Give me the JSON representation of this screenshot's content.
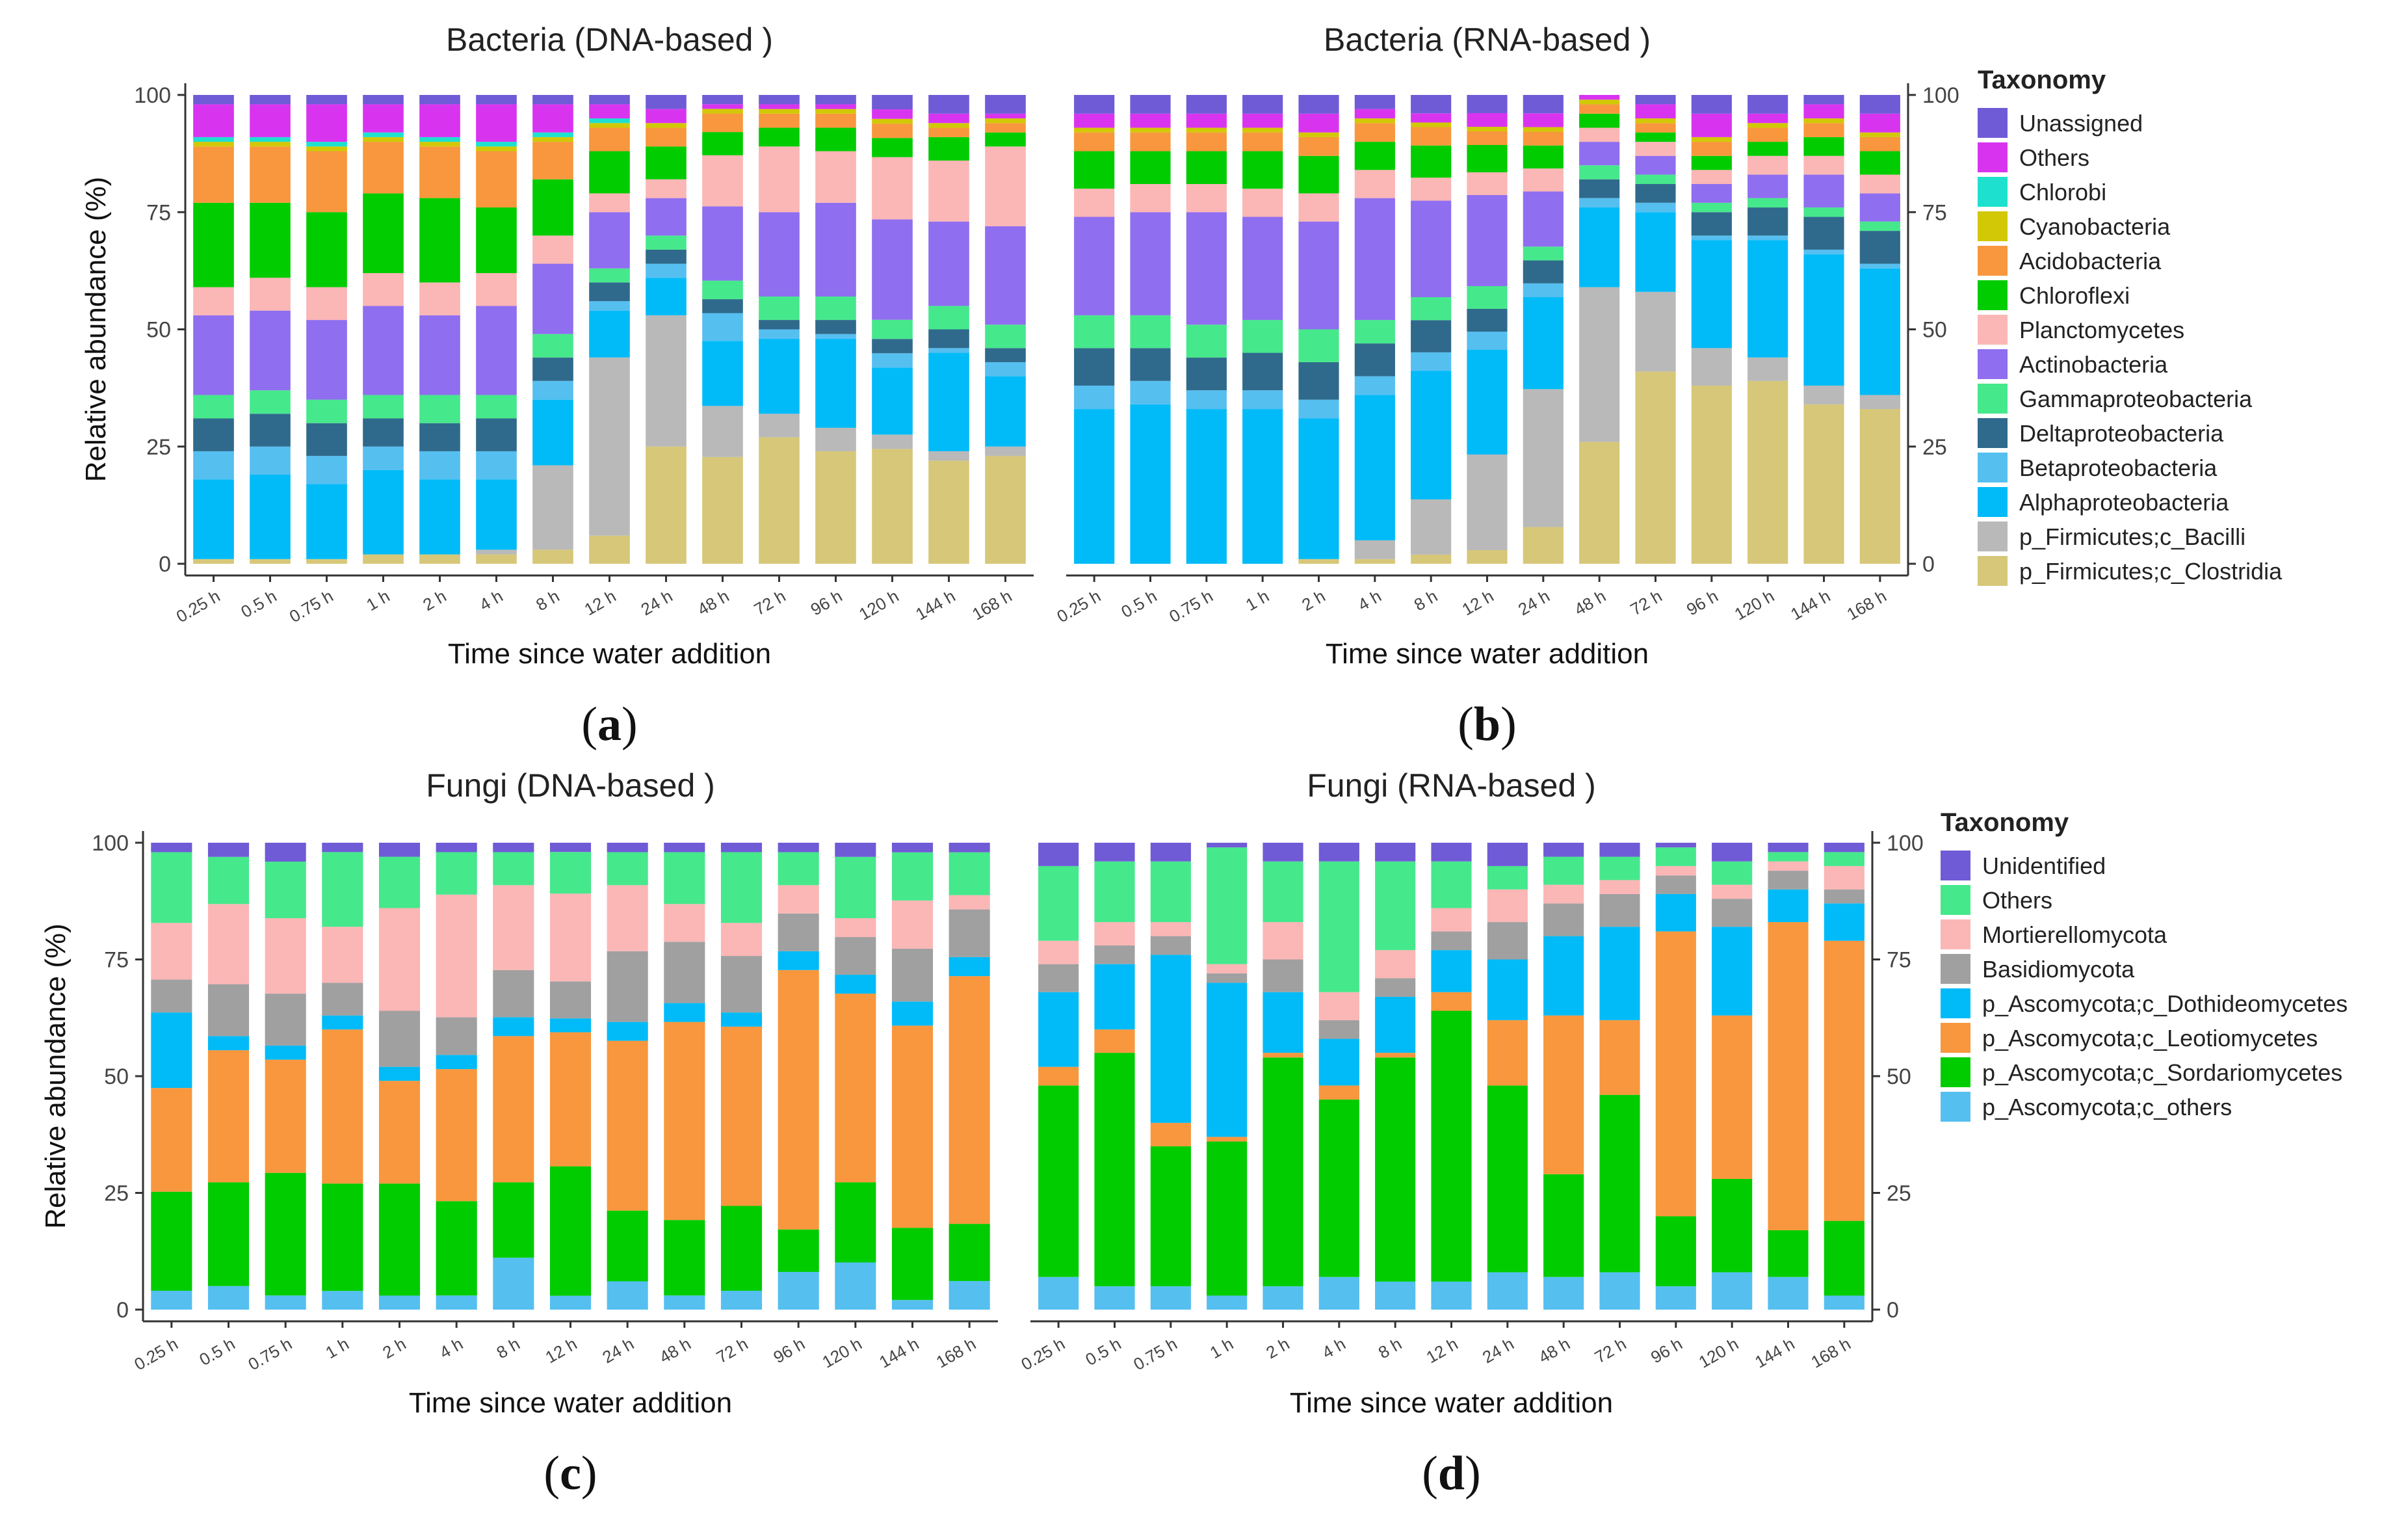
{
  "chart_data": [
    {
      "type": "bar",
      "id": "a",
      "stacked": true,
      "title": "Bacteria (DNA-based )",
      "panel_label": "a",
      "xlabel": "Time since water addition",
      "ylabel": "Relative abundance (%)",
      "ylim": [
        0,
        100
      ],
      "yticks": [
        "0",
        "25",
        "50",
        "75",
        "100"
      ],
      "categories": [
        "0.25 h",
        "0.5 h",
        "0.75 h",
        "1 h",
        "2 h",
        "4 h",
        "8 h",
        "12 h",
        "24 h",
        "48 h",
        "72 h",
        "96 h",
        "120 h",
        "144 h",
        "168 h"
      ],
      "legend_group": "bacteria",
      "series": [
        {
          "name": "p_Firmicutes;c_Clostridia",
          "values": [
            1,
            1,
            1,
            2,
            2,
            2,
            3,
            6,
            25,
            23,
            27,
            24,
            24,
            22,
            23
          ]
        },
        {
          "name": "p_Firmicutes;c_Bacilli",
          "values": [
            0,
            0,
            0,
            0,
            0,
            1,
            18,
            38,
            28,
            11,
            5,
            5,
            3,
            2,
            2
          ]
        },
        {
          "name": "Alphaproteobacteria",
          "values": [
            17,
            18,
            16,
            18,
            16,
            15,
            14,
            10,
            8,
            14,
            16,
            19,
            14,
            21,
            15
          ]
        },
        {
          "name": "Betaproteobacteria",
          "values": [
            6,
            6,
            6,
            5,
            6,
            6,
            4,
            2,
            3,
            6,
            2,
            1,
            3,
            1,
            3
          ]
        },
        {
          "name": "Deltaproteobacteria",
          "values": [
            7,
            7,
            7,
            6,
            6,
            7,
            5,
            4,
            3,
            3,
            2,
            3,
            3,
            4,
            3
          ]
        },
        {
          "name": "Gammaproteobacteria",
          "values": [
            5,
            5,
            5,
            5,
            6,
            5,
            5,
            3,
            3,
            4,
            5,
            5,
            4,
            5,
            5
          ]
        },
        {
          "name": "Actinobacteria",
          "values": [
            17,
            17,
            17,
            19,
            17,
            19,
            15,
            12,
            8,
            16,
            18,
            20,
            21,
            18,
            21
          ]
        },
        {
          "name": "Planctomycetes",
          "values": [
            6,
            7,
            7,
            7,
            7,
            7,
            6,
            4,
            4,
            11,
            14,
            11,
            13,
            13,
            17
          ]
        },
        {
          "name": "Chloroflexi",
          "values": [
            18,
            16,
            16,
            17,
            18,
            14,
            12,
            9,
            7,
            5,
            4,
            5,
            4,
            5,
            3
          ]
        },
        {
          "name": "Acidobacteria",
          "values": [
            12,
            12,
            13,
            11,
            11,
            12,
            8,
            5,
            4,
            4,
            3,
            3,
            3,
            2,
            2
          ]
        },
        {
          "name": "Cyanobacteria",
          "values": [
            1,
            1,
            1,
            1,
            1,
            1,
            1,
            1,
            1,
            1,
            1,
            1,
            1,
            1,
            1
          ]
        },
        {
          "name": "Chlorobi",
          "values": [
            1,
            1,
            1,
            1,
            1,
            1,
            1,
            1,
            0,
            0,
            0,
            0,
            0,
            0,
            0
          ]
        },
        {
          "name": "Others",
          "values": [
            7,
            7,
            8,
            6,
            7,
            8,
            6,
            3,
            3,
            1,
            1,
            1,
            2,
            2,
            1
          ]
        },
        {
          "name": "Unassigned",
          "values": [
            2,
            2,
            2,
            2,
            2,
            2,
            2,
            2,
            3,
            2,
            2,
            2,
            3,
            4,
            4
          ]
        }
      ]
    },
    {
      "type": "bar",
      "id": "b",
      "stacked": true,
      "title": "Bacteria  (RNA-based )",
      "panel_label": "b",
      "xlabel": "Time since water addition",
      "ylabel": "",
      "ylim": [
        0,
        100
      ],
      "yticks": [
        "0",
        "25",
        "50",
        "75",
        "100"
      ],
      "categories": [
        "0.25 h",
        "0.5 h",
        "0.75 h",
        "1 h",
        "2 h",
        "4 h",
        "8 h",
        "12 h",
        "24 h",
        "48 h",
        "72 h",
        "96 h",
        "120 h",
        "144 h",
        "168 h"
      ],
      "legend_group": "bacteria",
      "series": [
        {
          "name": "p_Firmicutes;c_Clostridia",
          "values": [
            0,
            0,
            0,
            0,
            1,
            1,
            2,
            3,
            8,
            26,
            41,
            38,
            39,
            34,
            33
          ]
        },
        {
          "name": "p_Firmicutes;c_Bacilli",
          "values": [
            0,
            0,
            0,
            0,
            0,
            4,
            12,
            21,
            30,
            33,
            17,
            8,
            5,
            4,
            3
          ]
        },
        {
          "name": "Alphaproteobacteria",
          "values": [
            33,
            34,
            33,
            33,
            30,
            31,
            28,
            23,
            20,
            17,
            17,
            23,
            25,
            28,
            27
          ]
        },
        {
          "name": "Betaproteobacteria",
          "values": [
            5,
            5,
            4,
            4,
            4,
            4,
            4,
            4,
            3,
            2,
            2,
            1,
            1,
            1,
            1
          ]
        },
        {
          "name": "Deltaproteobacteria",
          "values": [
            8,
            7,
            7,
            8,
            8,
            7,
            7,
            5,
            5,
            4,
            4,
            5,
            6,
            7,
            7
          ]
        },
        {
          "name": "Gammaproteobacteria",
          "values": [
            7,
            7,
            7,
            7,
            7,
            5,
            5,
            5,
            3,
            3,
            2,
            2,
            2,
            2,
            2
          ]
        },
        {
          "name": "Actinobacteria",
          "values": [
            21,
            22,
            24,
            22,
            23,
            26,
            21,
            20,
            12,
            5,
            4,
            4,
            5,
            7,
            6
          ]
        },
        {
          "name": "Planctomycetes",
          "values": [
            6,
            6,
            6,
            6,
            6,
            6,
            5,
            5,
            5,
            3,
            3,
            3,
            4,
            4,
            4
          ]
        },
        {
          "name": "Chloroflexi",
          "values": [
            8,
            7,
            7,
            8,
            8,
            6,
            7,
            6,
            5,
            3,
            2,
            3,
            3,
            4,
            5
          ]
        },
        {
          "name": "Acidobacteria",
          "values": [
            4,
            4,
            4,
            4,
            4,
            4,
            4,
            3,
            3,
            2,
            2,
            3,
            3,
            3,
            3
          ]
        },
        {
          "name": "Cyanobacteria",
          "values": [
            1,
            1,
            1,
            1,
            1,
            1,
            1,
            1,
            1,
            1,
            1,
            1,
            1,
            1,
            1
          ]
        },
        {
          "name": "Chlorobi",
          "values": [
            0,
            0,
            0,
            0,
            0,
            0,
            0,
            0,
            0,
            0,
            0,
            0,
            0,
            0,
            0
          ]
        },
        {
          "name": "Others",
          "values": [
            3,
            3,
            3,
            3,
            4,
            2,
            2,
            3,
            3,
            1,
            3,
            5,
            2,
            3,
            4
          ]
        },
        {
          "name": "Unassigned",
          "values": [
            4,
            4,
            4,
            4,
            4,
            3,
            4,
            4,
            4,
            0,
            2,
            4,
            4,
            2,
            4
          ]
        }
      ]
    },
    {
      "type": "bar",
      "id": "c",
      "stacked": true,
      "title": "Fungi (DNA-based )",
      "panel_label": "c",
      "xlabel": "Time since water addition",
      "ylabel": "Relative abundance (%)",
      "ylim": [
        0,
        100
      ],
      "yticks": [
        "0",
        "25",
        "50",
        "75",
        "100"
      ],
      "categories": [
        "0.25 h",
        "0.5 h",
        "0.75 h",
        "1 h",
        "2 h",
        "4 h",
        "8 h",
        "12 h",
        "24 h",
        "48 h",
        "72 h",
        "96 h",
        "120 h",
        "144 h",
        "168 h"
      ],
      "legend_group": "fungi",
      "series": [
        {
          "name": "p_Ascomycota;c_others",
          "values": [
            4,
            5,
            3,
            4,
            3,
            3,
            11,
            3,
            6,
            3,
            4,
            8,
            10,
            2,
            6
          ]
        },
        {
          "name": "p_Ascomycota;c_Sordariomycetes",
          "values": [
            21,
            22,
            26,
            23,
            24,
            20,
            16,
            28,
            15,
            16,
            18,
            9,
            17,
            15,
            12
          ]
        },
        {
          "name": "p_Ascomycota;c_Leotiomycetes",
          "values": [
            22,
            28,
            24,
            33,
            22,
            28,
            31,
            29,
            36,
            42,
            38,
            55,
            40,
            42,
            52
          ]
        },
        {
          "name": "p_Ascomycota;c_Dothideomycetes",
          "values": [
            16,
            3,
            3,
            3,
            3,
            3,
            4,
            3,
            4,
            4,
            3,
            4,
            4,
            5,
            4
          ]
        },
        {
          "name": "Basidiomycota",
          "values": [
            7,
            11,
            11,
            7,
            12,
            8,
            10,
            8,
            15,
            13,
            12,
            8,
            8,
            11,
            10
          ]
        },
        {
          "name": "Mortierellomycota",
          "values": [
            12,
            17,
            16,
            12,
            22,
            26,
            18,
            19,
            14,
            8,
            7,
            6,
            4,
            10,
            3
          ]
        },
        {
          "name": "Others",
          "values": [
            15,
            10,
            12,
            16,
            11,
            9,
            7,
            9,
            7,
            11,
            15,
            7,
            13,
            10,
            9
          ]
        },
        {
          "name": "Unidentified",
          "values": [
            2,
            3,
            4,
            2,
            3,
            2,
            2,
            2,
            2,
            2,
            2,
            2,
            3,
            2,
            2
          ]
        }
      ]
    },
    {
      "type": "bar",
      "id": "d",
      "stacked": true,
      "title": "Fungi (RNA-based )",
      "panel_label": "d",
      "xlabel": "Time since water addition",
      "ylabel": "",
      "ylim": [
        0,
        100
      ],
      "yticks": [
        "0",
        "25",
        "50",
        "75",
        "100"
      ],
      "categories": [
        "0.25 h",
        "0.5 h",
        "0.75 h",
        "1 h",
        "2 h",
        "4 h",
        "8 h",
        "12 h",
        "24 h",
        "48 h",
        "72 h",
        "96 h",
        "120 h",
        "144 h",
        "168 h"
      ],
      "legend_group": "fungi",
      "series": [
        {
          "name": "p_Ascomycota;c_others",
          "values": [
            7,
            5,
            5,
            3,
            5,
            7,
            6,
            6,
            8,
            7,
            8,
            5,
            8,
            7,
            3
          ]
        },
        {
          "name": "p_Ascomycota;c_Sordariomycetes",
          "values": [
            41,
            50,
            30,
            33,
            49,
            38,
            48,
            58,
            40,
            22,
            38,
            15,
            20,
            10,
            16
          ]
        },
        {
          "name": "p_Ascomycota;c_Leotiomycetes",
          "values": [
            4,
            5,
            5,
            1,
            1,
            3,
            1,
            4,
            14,
            34,
            16,
            61,
            35,
            66,
            60
          ]
        },
        {
          "name": "p_Ascomycota;c_Dothideomycetes",
          "values": [
            16,
            14,
            36,
            33,
            13,
            10,
            12,
            9,
            13,
            17,
            20,
            8,
            19,
            7,
            8
          ]
        },
        {
          "name": "Basidiomycota",
          "values": [
            6,
            4,
            4,
            2,
            7,
            4,
            4,
            4,
            8,
            7,
            7,
            4,
            6,
            4,
            3
          ]
        },
        {
          "name": "Mortierellomycota",
          "values": [
            5,
            5,
            3,
            2,
            8,
            6,
            6,
            5,
            7,
            4,
            3,
            2,
            3,
            2,
            5
          ]
        },
        {
          "name": "Others",
          "values": [
            16,
            13,
            13,
            25,
            13,
            28,
            19,
            10,
            5,
            6,
            5,
            4,
            5,
            2,
            3
          ]
        },
        {
          "name": "Unidentified",
          "values": [
            5,
            4,
            4,
            1,
            4,
            4,
            4,
            4,
            5,
            3,
            3,
            1,
            4,
            2,
            2
          ]
        }
      ]
    }
  ],
  "legends": {
    "bacteria": {
      "title": "Taxonomy",
      "entries": [
        {
          "name": "Unassigned",
          "color": "#6f5bd6"
        },
        {
          "name": "Others",
          "color": "#d834f0"
        },
        {
          "name": "Chlorobi",
          "color": "#1ee0cf"
        },
        {
          "name": "Cyanobacteria",
          "color": "#d2c806"
        },
        {
          "name": "Acidobacteria",
          "color": "#f8973d"
        },
        {
          "name": "Chloroflexi",
          "color": "#00cc00"
        },
        {
          "name": "Planctomycetes",
          "color": "#fbb6b6"
        },
        {
          "name": "Actinobacteria",
          "color": "#8f6ef0"
        },
        {
          "name": "Gammaproteobacteria",
          "color": "#46e88c"
        },
        {
          "name": "Deltaproteobacteria",
          "color": "#2f6a8c"
        },
        {
          "name": "Betaproteobacteria",
          "color": "#55bff0"
        },
        {
          "name": "Alphaproteobacteria",
          "color": "#00bbf7"
        },
        {
          "name": "p_Firmicutes;c_Bacilli",
          "color": "#b9b9b9"
        },
        {
          "name": "p_Firmicutes;c_Clostridia",
          "color": "#d6c779"
        }
      ]
    },
    "fungi": {
      "title": "Taxonomy",
      "entries": [
        {
          "name": "Unidentified",
          "color": "#6f5bd6"
        },
        {
          "name": "Others",
          "color": "#46e88c"
        },
        {
          "name": "Mortierellomycota",
          "color": "#fbb6b6"
        },
        {
          "name": "Basidiomycota",
          "color": "#a0a0a0"
        },
        {
          "name": "p_Ascomycota;c_Dothideomycetes",
          "color": "#00bbf7"
        },
        {
          "name": "p_Ascomycota;c_Leotiomycetes",
          "color": "#f8973d"
        },
        {
          "name": "p_Ascomycota;c_Sordariomycetes",
          "color": "#00cc00"
        },
        {
          "name": "p_Ascomycota;c_others",
          "color": "#55bff0"
        }
      ]
    }
  }
}
